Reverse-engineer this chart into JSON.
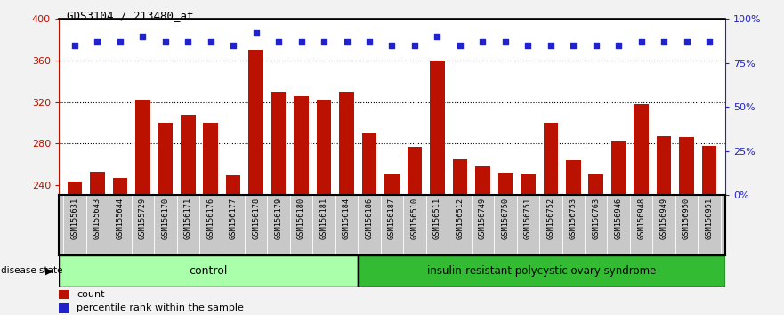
{
  "title": "GDS3104 / 213480_at",
  "samples": [
    "GSM155631",
    "GSM155643",
    "GSM155644",
    "GSM155729",
    "GSM156170",
    "GSM156171",
    "GSM156176",
    "GSM156177",
    "GSM156178",
    "GSM156179",
    "GSM156180",
    "GSM156181",
    "GSM156184",
    "GSM156186",
    "GSM156187",
    "GSM156510",
    "GSM156511",
    "GSM156512",
    "GSM156749",
    "GSM156750",
    "GSM156751",
    "GSM156752",
    "GSM156753",
    "GSM156763",
    "GSM156946",
    "GSM156948",
    "GSM156949",
    "GSM156950",
    "GSM156951"
  ],
  "counts": [
    243,
    253,
    247,
    322,
    300,
    308,
    300,
    249,
    370,
    330,
    326,
    322,
    330,
    290,
    250,
    277,
    360,
    265,
    258,
    252,
    250,
    300,
    264,
    250,
    282,
    318,
    287,
    286,
    278
  ],
  "percentiles": [
    85,
    87,
    87,
    90,
    87,
    87,
    87,
    85,
    92,
    87,
    87,
    87,
    87,
    87,
    85,
    85,
    90,
    85,
    87,
    87,
    85,
    85,
    85,
    85,
    85,
    87,
    87,
    87,
    87
  ],
  "control_count": 13,
  "disease_count": 16,
  "ylim_left": [
    230,
    400
  ],
  "ylim_right": [
    0,
    100
  ],
  "yticks_left": [
    240,
    280,
    320,
    360,
    400
  ],
  "yticks_right": [
    0,
    25,
    50,
    75,
    100
  ],
  "bar_color": "#BB1100",
  "dot_color": "#2222CC",
  "control_color_light": "#AAFFAA",
  "control_color": "#77DD77",
  "disease_color": "#33BB33",
  "bg_color": "#C8C8C8",
  "plot_bg": "#FFFFFF",
  "fig_bg": "#F2F2F2",
  "label_count": "count",
  "label_percentile": "percentile rank within the sample",
  "group_label_control": "control",
  "group_label_disease": "insulin-resistant polycystic ovary syndrome",
  "disease_state_label": "disease state"
}
